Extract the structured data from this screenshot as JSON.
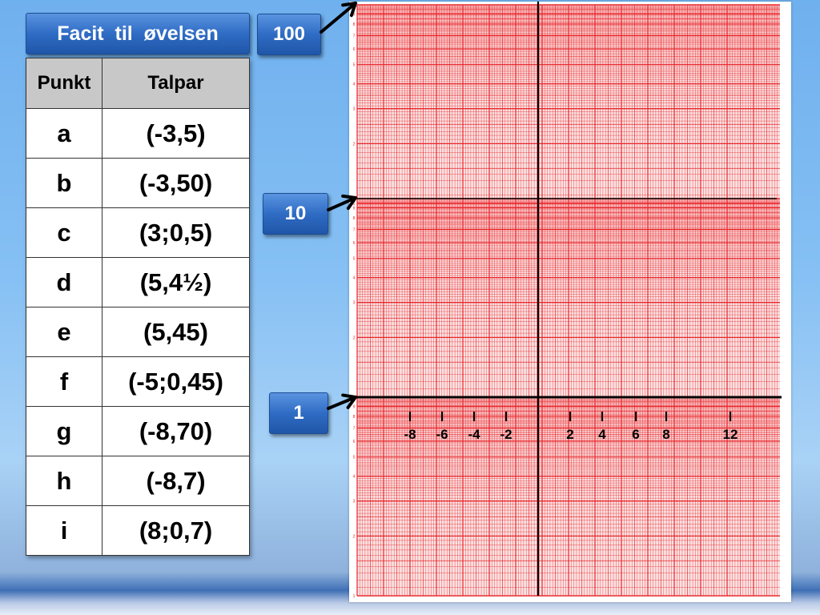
{
  "title": "Facit  til  øvelsen",
  "decade_labels": [
    "100",
    "10",
    "1"
  ],
  "table": {
    "headers": [
      "Punkt",
      "Talpar"
    ],
    "rows": [
      {
        "punkt": "a",
        "talpar": "(-3,5)"
      },
      {
        "punkt": "b",
        "talpar": "(-3,50)"
      },
      {
        "punkt": "c",
        "talpar": "(3;0,5)"
      },
      {
        "punkt": "d",
        "talpar": "(5,4½)"
      },
      {
        "punkt": "e",
        "talpar": "(5,45)"
      },
      {
        "punkt": "f",
        "talpar": "(-5;0,45)"
      },
      {
        "punkt": "g",
        "talpar": "(-8,70)"
      },
      {
        "punkt": "h",
        "talpar": "(-8,7)"
      },
      {
        "punkt": "i",
        "talpar": "(8;0,7)"
      }
    ]
  },
  "x_tick_labels": [
    "-8",
    "-6",
    "-4",
    "-2",
    "2",
    "4",
    "6",
    "8",
    "12"
  ],
  "colors": {
    "button": "#2f6cc4",
    "grid": "#e8262b",
    "axis": "#000000"
  }
}
